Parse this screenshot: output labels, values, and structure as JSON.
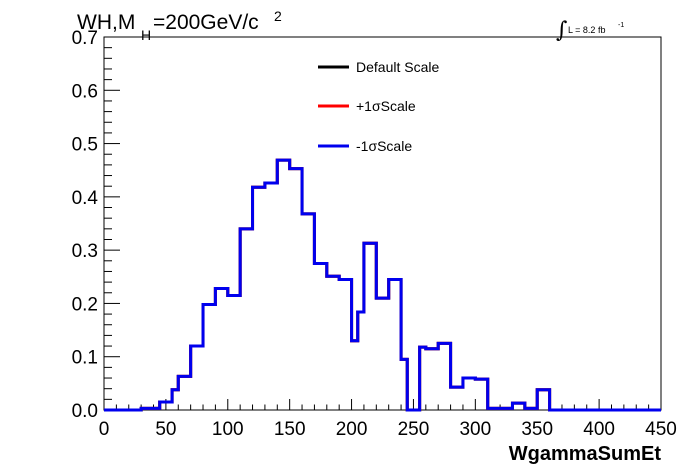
{
  "chart_data": {
    "type": "line",
    "style": "step-histogram",
    "title": {
      "prefix": "WH,M",
      "subscript": "H",
      "value": "=200GeV/c",
      "superscript": "2"
    },
    "lumi": {
      "integral_symbol": "∫",
      "text": "L = 8.2 fb",
      "superscript": "-1"
    },
    "xlabel": "WgammaSumEt",
    "xlim": [
      0,
      450
    ],
    "ylim": [
      0,
      0.7
    ],
    "x_ticks": [
      "0",
      "50",
      "100",
      "150",
      "200",
      "250",
      "300",
      "350",
      "400",
      "450"
    ],
    "y_ticks": [
      "0.0",
      "0.1",
      "0.2",
      "0.3",
      "0.4",
      "0.5",
      "0.6",
      "0.7"
    ],
    "bin_edges": [
      0,
      10,
      20,
      30,
      40,
      45,
      50,
      55,
      60,
      70,
      80,
      90,
      100,
      110,
      120,
      130,
      135,
      140,
      145,
      150,
      160,
      170,
      180,
      190,
      200,
      205,
      210,
      220,
      230,
      240,
      245,
      250,
      255,
      260,
      270,
      280,
      290,
      300,
      310,
      320,
      330,
      340,
      350,
      360,
      370,
      380,
      390,
      400,
      410,
      420,
      430,
      440,
      450
    ],
    "legend_position": "top-center",
    "series": [
      {
        "name": "Default Scale",
        "color": "#000000",
        "values": [
          0,
          0,
          0,
          0.003,
          0.003,
          0.015,
          0.015,
          0.038,
          0.063,
          0.12,
          0.198,
          0.228,
          0.215,
          0.34,
          0.418,
          0.426,
          0.426,
          0.469,
          0.469,
          0.453,
          0.368,
          0.275,
          0.251,
          0.245,
          0.13,
          0.184,
          0.313,
          0.21,
          0.245,
          0.095,
          0.0,
          0.0,
          0.118,
          0.115,
          0.125,
          0.043,
          0.06,
          0.058,
          0.003,
          0.003,
          0.013,
          0.003,
          0.038,
          0.0,
          0,
          0,
          0,
          0,
          0,
          0,
          0,
          0
        ]
      },
      {
        "name": "+1σScale",
        "color": "#ff0000",
        "values": [
          0,
          0,
          0,
          0.003,
          0.003,
          0.015,
          0.015,
          0.038,
          0.063,
          0.12,
          0.198,
          0.228,
          0.215,
          0.34,
          0.418,
          0.426,
          0.426,
          0.469,
          0.469,
          0.453,
          0.368,
          0.275,
          0.251,
          0.245,
          0.13,
          0.184,
          0.313,
          0.21,
          0.245,
          0.095,
          0.0,
          0.0,
          0.118,
          0.115,
          0.125,
          0.043,
          0.06,
          0.058,
          0.003,
          0.003,
          0.013,
          0.003,
          0.038,
          0.0,
          0,
          0,
          0,
          0,
          0,
          0,
          0,
          0
        ]
      },
      {
        "name": "-1σScale",
        "color": "#0000ee",
        "values": [
          0,
          0,
          0,
          0.003,
          0.003,
          0.015,
          0.015,
          0.038,
          0.063,
          0.12,
          0.198,
          0.228,
          0.215,
          0.34,
          0.418,
          0.426,
          0.426,
          0.469,
          0.469,
          0.453,
          0.368,
          0.275,
          0.251,
          0.245,
          0.13,
          0.184,
          0.313,
          0.21,
          0.245,
          0.095,
          0.0,
          0.0,
          0.118,
          0.115,
          0.125,
          0.043,
          0.06,
          0.058,
          0.003,
          0.003,
          0.013,
          0.003,
          0.038,
          0.0,
          0,
          0,
          0,
          0,
          0,
          0,
          0,
          0
        ]
      }
    ]
  }
}
